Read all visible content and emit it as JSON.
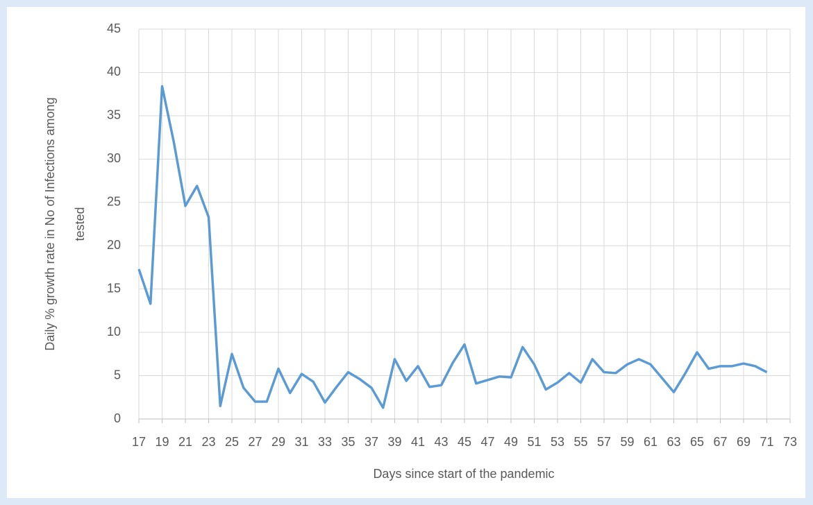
{
  "chart_data": {
    "type": "line",
    "x_label": "Days since start of the pandemic",
    "y_label": [
      "Daily % growth rate in No of Infections among",
      "tested"
    ],
    "x": [
      17,
      18,
      19,
      20,
      21,
      22,
      23,
      24,
      25,
      26,
      27,
      28,
      29,
      30,
      31,
      32,
      33,
      34,
      35,
      36,
      37,
      38,
      39,
      40,
      41,
      42,
      43,
      44,
      45,
      46,
      47,
      48,
      49,
      50,
      51,
      52,
      53,
      54,
      55,
      56,
      57,
      58,
      59,
      60,
      61,
      62,
      63,
      64,
      65,
      66,
      67,
      68,
      69,
      70,
      71
    ],
    "series": [
      {
        "color": "#5b9bd5",
        "values": [
          17.3,
          13.3,
          38.4,
          32,
          24.6,
          26.9,
          23.3,
          1.5,
          7.5,
          3.6,
          2,
          2,
          5.8,
          3,
          5.2,
          4.3,
          1.9,
          3.7,
          5.4,
          4.6,
          3.6,
          1.3,
          6.9,
          4.4,
          6.1,
          3.7,
          3.9,
          6.5,
          8.6,
          4.1,
          4.5,
          4.9,
          4.8,
          8.3,
          6.3,
          3.4,
          4.2,
          5.3,
          4.2,
          6.9,
          5.4,
          5.3,
          6.3,
          6.9,
          6.3,
          4.7,
          3.1,
          5.3,
          7.7,
          5.8,
          6.1,
          6.1,
          6.4,
          6.1,
          5.4
        ]
      }
    ],
    "xlim": [
      17,
      73
    ],
    "xticks": [
      17,
      19,
      21,
      23,
      25,
      27,
      29,
      31,
      33,
      35,
      37,
      39,
      41,
      43,
      45,
      47,
      49,
      51,
      53,
      55,
      57,
      59,
      61,
      63,
      65,
      67,
      69,
      71,
      73
    ],
    "ylim": [
      0,
      45
    ],
    "yticks": [
      0,
      5,
      10,
      15,
      20,
      25,
      30,
      35,
      40,
      45
    ],
    "grid": true
  }
}
